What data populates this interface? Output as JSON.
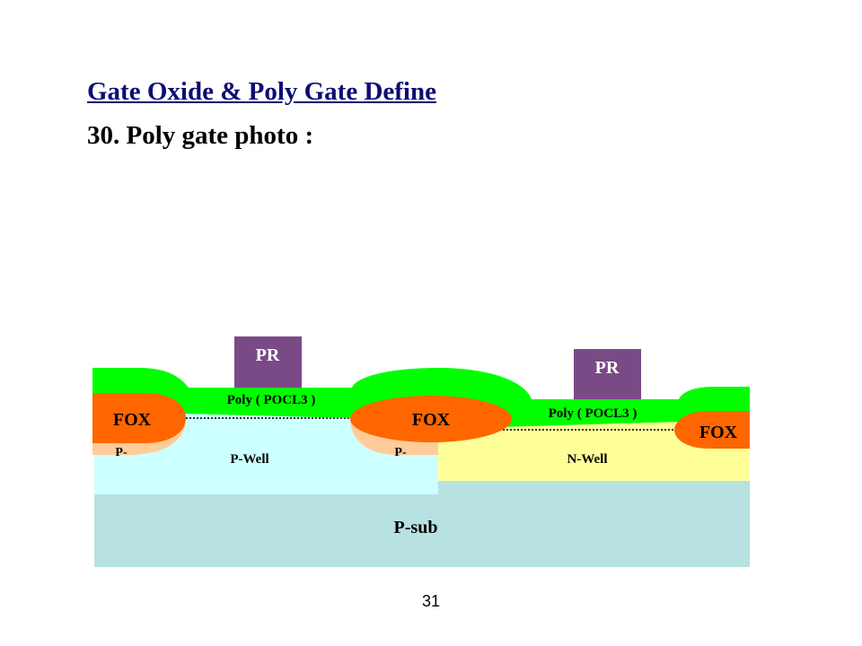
{
  "title": "Gate Oxide & Poly Gate Define",
  "subtitle": "30. Poly gate photo :",
  "page_number": "31",
  "diagram": {
    "labels": {
      "pr_left": "PR",
      "pr_right": "PR",
      "poly_left": "Poly ( POCL3 )",
      "poly_right": "Poly ( POCL3 )",
      "fox_left": "FOX",
      "fox_center": "FOX",
      "fox_right": "FOX",
      "p_minus_left": "P-",
      "p_minus_center": "P-",
      "p_well": "P-Well",
      "n_well": "N-Well",
      "p_sub": "P-sub"
    },
    "colors": {
      "photoresist": "#7a4a86",
      "poly": "#00ff00",
      "field_oxide": "#ff6600",
      "p_minus": "#ffcc99",
      "p_well": "#ccffff",
      "n_well": "#ffff99",
      "p_substrate": "#b8e1e1",
      "gate_oxide": "#333333",
      "pr_text": "#ffffff"
    }
  }
}
